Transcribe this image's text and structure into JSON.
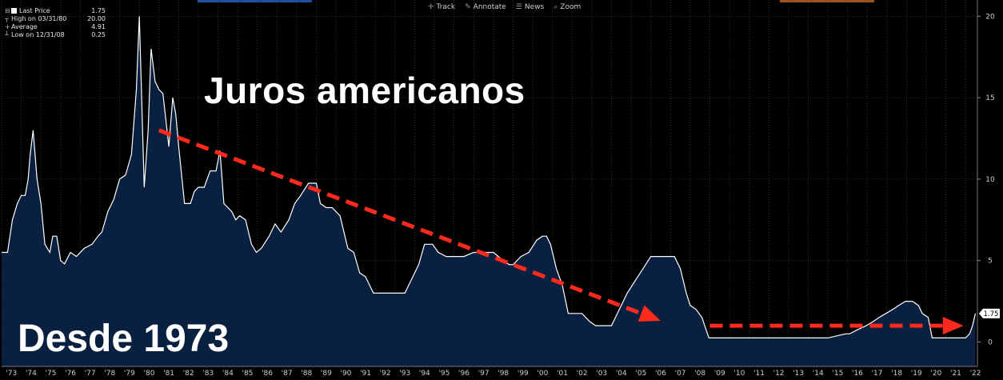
{
  "toolbar": {
    "items": [
      {
        "label": "Track",
        "icon": "crosshair-icon",
        "glyph": "✛"
      },
      {
        "label": "Annotate",
        "icon": "pencil-icon",
        "glyph": "✎"
      },
      {
        "label": "News",
        "icon": "list-icon",
        "glyph": "☰"
      },
      {
        "label": "Zoom",
        "icon": "magnifier-icon",
        "glyph": "⌕"
      }
    ]
  },
  "legend": {
    "rows": [
      {
        "label": "Last Price",
        "value": "1.75"
      },
      {
        "label": "High on 03/31/80",
        "value": "20.00"
      },
      {
        "label": "Average",
        "value": "4.91"
      },
      {
        "label": "Low on 12/31/08",
        "value": "0.25"
      }
    ]
  },
  "overlay": {
    "title": "Juros americanos",
    "subtitle": "Desde 1973"
  },
  "colors": {
    "background": "#000000",
    "area_fill": "#0a2040",
    "line": "#ffffff",
    "grid": "#3a3a3a",
    "arrow": "#ff2a1e",
    "price_tag_bg": "#ffffff",
    "strip_blue": "#1f4fa0",
    "strip_orange": "#a0521e"
  },
  "chart_data": {
    "type": "area",
    "title": "",
    "xlabel": "",
    "ylabel": "",
    "ylim": [
      -1.5,
      21
    ],
    "xlim": [
      1973.0,
      2022.6
    ],
    "yticks": [
      0,
      5,
      10,
      15,
      20
    ],
    "xtick_labels": [
      "'73",
      "'74",
      "'75",
      "'76",
      "'77",
      "'78",
      "'79",
      "'80",
      "'81",
      "'82",
      "'83",
      "'84",
      "'85",
      "'86",
      "'87",
      "'88",
      "'89",
      "'90",
      "'91",
      "'92",
      "'93",
      "'94",
      "'95",
      "'96",
      "'97",
      "'98",
      "'99",
      "'00",
      "'01",
      "'02",
      "'03",
      "'04",
      "'05",
      "'06",
      "'07",
      "'08",
      "'09",
      "'10",
      "'11",
      "'12",
      "'13",
      "'14",
      "'15",
      "'16",
      "'17",
      "'18",
      "'19",
      "'20",
      "'21",
      "'22"
    ],
    "grid": true,
    "last_price_label": "1.75",
    "series": [
      {
        "x": [
          1973.0,
          1973.3,
          1973.55,
          1973.8,
          1974.0,
          1974.2,
          1974.35,
          1974.45,
          1974.6,
          1974.8,
          1975.0,
          1975.2,
          1975.45,
          1975.6,
          1975.8,
          1976.0,
          1976.2,
          1976.5,
          1976.8,
          1977.2,
          1977.6,
          1977.9,
          1978.1,
          1978.4,
          1978.7,
          1979.0,
          1979.3,
          1979.6,
          1979.85,
          1980.0,
          1980.25,
          1980.45,
          1980.6,
          1980.8,
          1981.0,
          1981.2,
          1981.5,
          1981.7,
          1981.85,
          1982.0,
          1982.3,
          1982.6,
          1982.8,
          1983.0,
          1983.3,
          1983.6,
          1983.9,
          1984.1,
          1984.3,
          1984.5,
          1984.7,
          1984.9,
          1985.1,
          1985.4,
          1985.7,
          1985.95,
          1986.2,
          1986.6,
          1986.9,
          1987.2,
          1987.6,
          1987.9,
          1988.2,
          1988.6,
          1989.0,
          1989.2,
          1989.5,
          1989.8,
          1990.2,
          1990.6,
          1990.9,
          1991.2,
          1991.5,
          1991.9,
          1992.2,
          1992.5,
          1993.0,
          1993.5,
          1994.0,
          1994.2,
          1994.5,
          1994.9,
          1995.2,
          1995.6,
          1996.0,
          1996.5,
          1997.0,
          1997.3,
          1998.0,
          1998.5,
          1998.8,
          1999.0,
          1999.4,
          1999.8,
          2000.2,
          2000.5,
          2000.7,
          2000.9,
          2001.2,
          2001.5,
          2001.8,
          2002.0,
          2002.5,
          2002.9,
          2003.2,
          2003.6,
          2004.0,
          2004.4,
          2004.8,
          2005.2,
          2005.6,
          2006.0,
          2006.4,
          2006.8,
          2007.2,
          2007.5,
          2007.8,
          2008.0,
          2008.3,
          2008.6,
          2008.95,
          2009.5,
          2010.0,
          2011.0,
          2012.0,
          2013.0,
          2014.0,
          2015.0,
          2015.9,
          2016.1,
          2016.5,
          2016.95,
          2017.3,
          2017.6,
          2017.95,
          2018.3,
          2018.6,
          2018.95,
          2019.3,
          2019.6,
          2019.8,
          2020.1,
          2020.3,
          2021.0,
          2022.0,
          2022.2,
          2022.35,
          2022.5
        ],
        "values": [
          5.5,
          5.5,
          7.5,
          8.5,
          9.0,
          9.0,
          10.0,
          11.5,
          13.0,
          10.0,
          8.5,
          6.0,
          5.5,
          6.5,
          6.5,
          5.0,
          4.8,
          5.5,
          5.25,
          5.75,
          6.0,
          6.5,
          6.75,
          8.0,
          8.75,
          10.0,
          10.25,
          11.5,
          15.5,
          20.0,
          9.5,
          13.0,
          18.0,
          16.0,
          15.5,
          15.25,
          12.0,
          15.0,
          14.0,
          12.0,
          8.5,
          8.5,
          9.25,
          9.5,
          9.5,
          10.5,
          10.5,
          11.75,
          8.5,
          8.25,
          8.0,
          7.5,
          7.75,
          7.5,
          6.0,
          5.5,
          5.75,
          6.5,
          7.25,
          6.75,
          7.5,
          8.5,
          9.0,
          9.75,
          9.75,
          8.5,
          8.25,
          8.25,
          7.75,
          5.75,
          5.5,
          4.25,
          4.0,
          3.0,
          3.0,
          3.0,
          3.0,
          3.0,
          4.25,
          4.75,
          6.0,
          6.0,
          5.5,
          5.25,
          5.25,
          5.25,
          5.5,
          5.5,
          5.5,
          5.0,
          4.75,
          4.75,
          5.25,
          5.5,
          6.25,
          6.5,
          6.5,
          6.0,
          4.5,
          3.5,
          1.75,
          1.75,
          1.75,
          1.25,
          1.0,
          1.0,
          1.0,
          2.0,
          3.0,
          3.75,
          4.5,
          5.25,
          5.25,
          5.25,
          5.25,
          4.5,
          3.0,
          2.25,
          2.0,
          1.5,
          0.25,
          0.25,
          0.25,
          0.25,
          0.25,
          0.25,
          0.25,
          0.25,
          0.5,
          0.5,
          0.75,
          1.0,
          1.25,
          1.5,
          1.75,
          2.0,
          2.25,
          2.5,
          2.5,
          2.25,
          1.75,
          1.5,
          0.25,
          0.25,
          0.25,
          0.5,
          1.0,
          1.75
        ]
      }
    ],
    "annotations": [
      {
        "type": "dashed-arrow",
        "x0": 1981.0,
        "y0": 13.0,
        "x1": 2006.5,
        "y1": 1.3
      },
      {
        "type": "dashed-arrow",
        "x0": 2009.0,
        "y0": 1.0,
        "x1": 2021.9,
        "y1": 1.0
      }
    ]
  }
}
